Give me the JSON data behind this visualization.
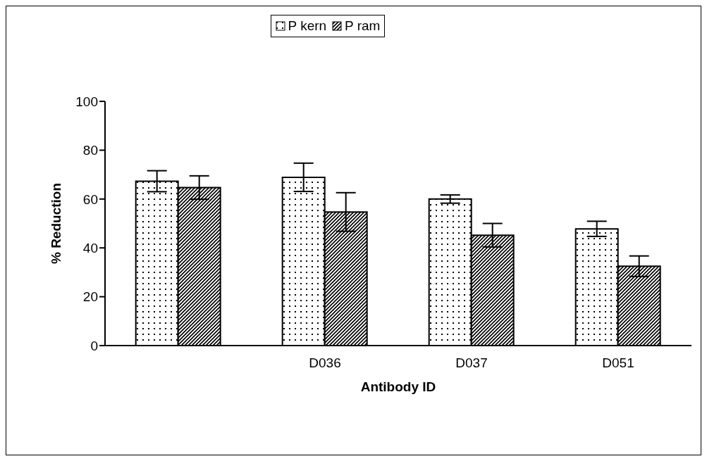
{
  "chart_data": {
    "type": "bar",
    "xlabel": "Antibody ID",
    "ylabel": "% Reduction",
    "categories": [
      null,
      "D036",
      "D037",
      "D051"
    ],
    "series": [
      {
        "name": "P kern",
        "color": "#000000",
        "values": [
          67.3,
          68.9,
          60.0,
          47.8
        ],
        "errors": [
          4.3,
          5.8,
          1.7,
          3.1
        ]
      },
      {
        "name": "P ram",
        "color": "#000000",
        "values": [
          64.7,
          54.7,
          45.2,
          32.5
        ],
        "errors": [
          4.8,
          7.9,
          4.8,
          4.2
        ]
      }
    ],
    "ylim": [
      0,
      100
    ],
    "yticks": [
      0,
      20,
      40,
      60,
      80,
      100
    ],
    "grid": false,
    "legend": "top"
  }
}
